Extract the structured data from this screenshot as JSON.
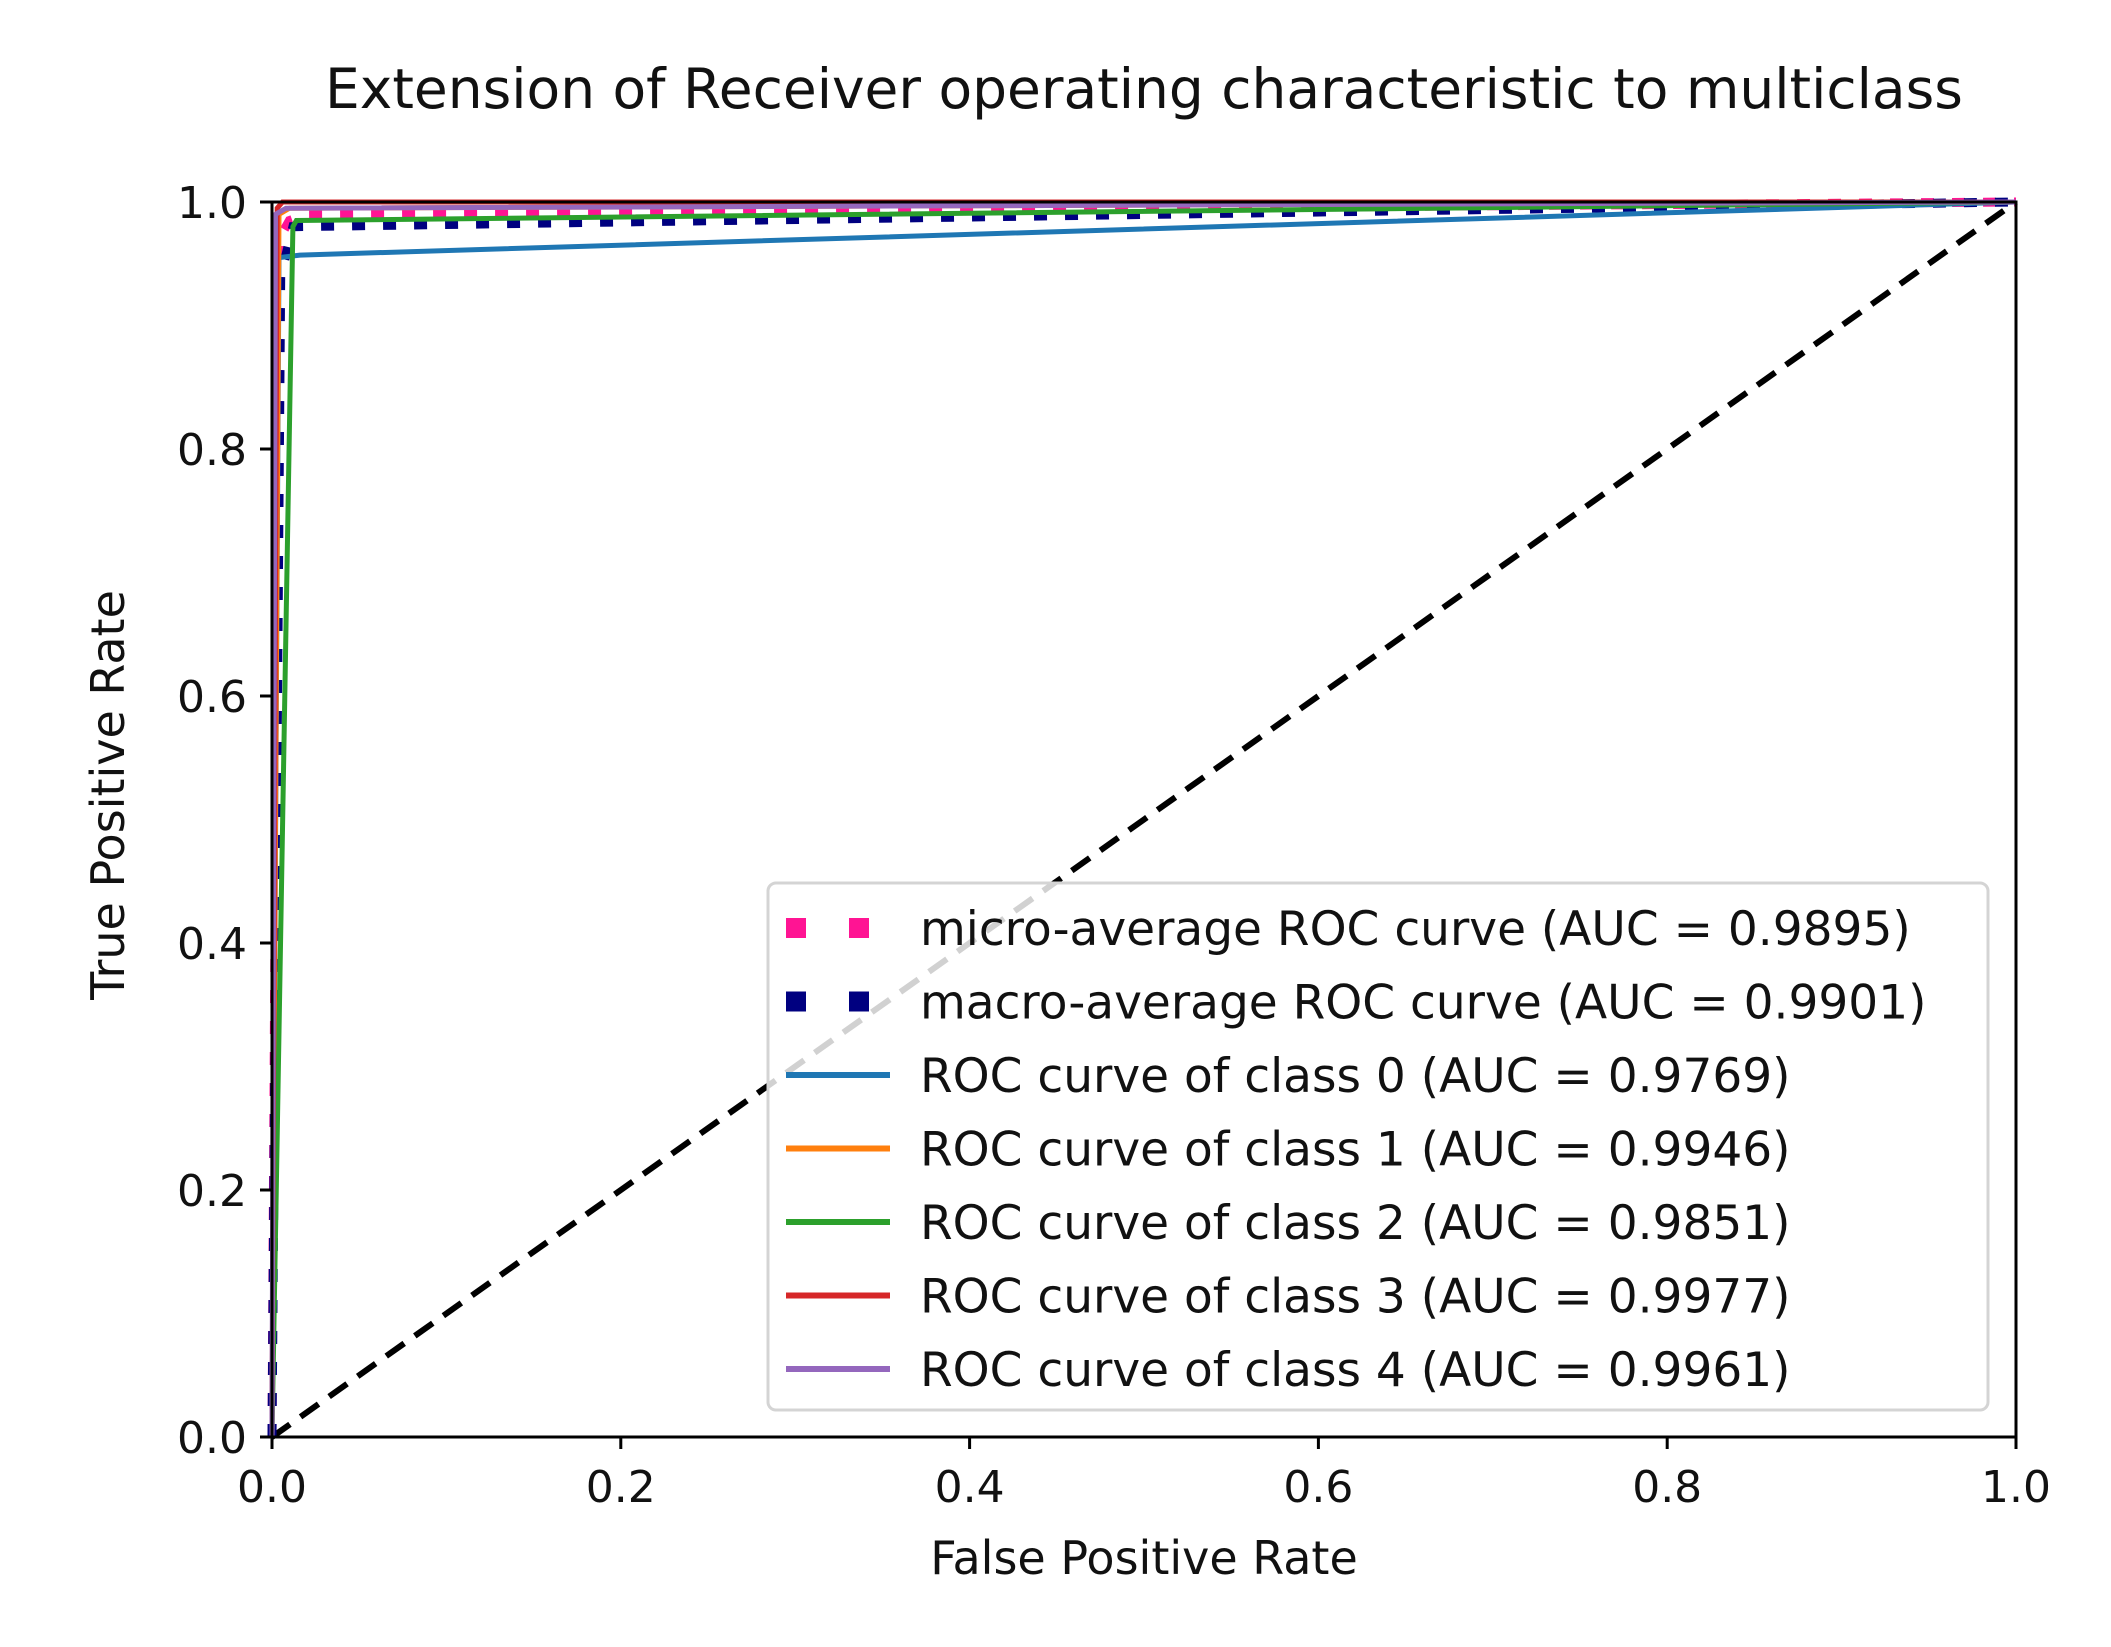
{
  "chart_data": {
    "type": "line",
    "title": "Extension of Receiver operating characteristic to multiclass",
    "xlabel": "False Positive Rate",
    "ylabel": "True Positive Rate",
    "xlim": [
      0.0,
      1.0
    ],
    "ylim": [
      0.0,
      1.0
    ],
    "xticks": [
      "0.0",
      "0.2",
      "0.4",
      "0.6",
      "0.8",
      "1.0"
    ],
    "yticks": [
      "0.0",
      "0.2",
      "0.4",
      "0.6",
      "0.8",
      "1.0"
    ],
    "grid": false,
    "legend_position": "lower-right",
    "series": [
      {
        "name": "micro-average ROC curve (AUC = 0.9895)",
        "color": "#ff1493",
        "style": "dotted",
        "x": [
          0.0,
          0.004,
          0.01,
          0.02,
          1.0
        ],
        "y": [
          0.0,
          0.97,
          0.985,
          0.99,
          1.0
        ]
      },
      {
        "name": "macro-average ROC curve (AUC = 0.9901)",
        "color": "#000080",
        "style": "dotted",
        "x": [
          0.0,
          0.005,
          0.012,
          1.0
        ],
        "y": [
          0.0,
          0.94,
          0.98,
          1.0
        ]
      },
      {
        "name": "ROC curve of class 0 (AUC = 0.9769)",
        "color": "#1f77b4",
        "style": "solid",
        "x": [
          0.0,
          0.004,
          0.016,
          1.0
        ],
        "y": [
          0.0,
          0.955,
          0.957,
          1.0
        ]
      },
      {
        "name": "ROC curve of class 1 (AUC = 0.9946)",
        "color": "#ff7f0e",
        "style": "solid",
        "x": [
          0.0,
          0.004,
          0.01,
          1.0
        ],
        "y": [
          0.0,
          0.99,
          0.995,
          1.0
        ]
      },
      {
        "name": "ROC curve of class 2 (AUC = 0.9851)",
        "color": "#2ca02c",
        "style": "solid",
        "x": [
          0.0,
          0.012,
          0.014,
          1.0
        ],
        "y": [
          0.0,
          0.98,
          0.985,
          1.0
        ]
      },
      {
        "name": "ROC curve of class 3 (AUC = 0.9977)",
        "color": "#d62728",
        "style": "solid",
        "x": [
          0.0,
          0.003,
          0.006,
          1.0
        ],
        "y": [
          0.0,
          0.995,
          1.0,
          1.0
        ]
      },
      {
        "name": "ROC curve of class 4 (AUC = 0.9961)",
        "color": "#9467bd",
        "style": "solid",
        "x": [
          0.0,
          0.002,
          0.008,
          1.0
        ],
        "y": [
          0.0,
          0.99,
          0.995,
          1.0
        ]
      }
    ],
    "reference_line": {
      "x": [
        0.0,
        1.0
      ],
      "y": [
        0.0,
        1.0
      ],
      "color": "#000000",
      "style": "dashed"
    }
  }
}
